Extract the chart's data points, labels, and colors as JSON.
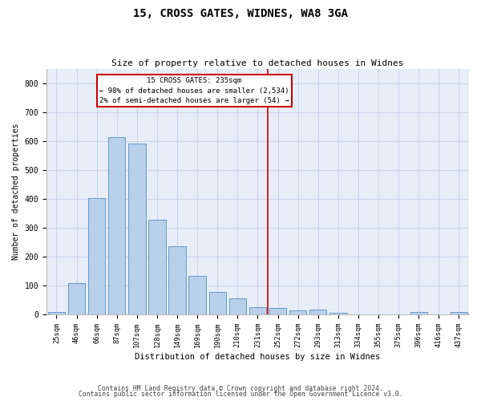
{
  "title1": "15, CROSS GATES, WIDNES, WA8 3GA",
  "title2": "Size of property relative to detached houses in Widnes",
  "xlabel": "Distribution of detached houses by size in Widnes",
  "ylabel": "Number of detached properties",
  "categories": [
    "25sqm",
    "46sqm",
    "66sqm",
    "87sqm",
    "107sqm",
    "128sqm",
    "149sqm",
    "169sqm",
    "190sqm",
    "210sqm",
    "231sqm",
    "252sqm",
    "272sqm",
    "293sqm",
    "313sqm",
    "334sqm",
    "355sqm",
    "375sqm",
    "396sqm",
    "416sqm",
    "437sqm"
  ],
  "values": [
    7,
    107,
    404,
    614,
    592,
    328,
    236,
    133,
    78,
    55,
    25,
    22,
    13,
    15,
    5,
    0,
    0,
    0,
    8,
    0,
    8
  ],
  "bar_color": "#b8d0ea",
  "bar_edge_color": "#6699cc",
  "vline_color": "#cc0000",
  "box_edge_color": "#cc0000",
  "annotation_line1": "15 CROSS GATES: 235sqm",
  "annotation_line2": "← 98% of detached houses are smaller (2,534)",
  "annotation_line3": "2% of semi-detached houses are larger (54) →",
  "ylim": [
    0,
    850
  ],
  "yticks": [
    0,
    100,
    200,
    300,
    400,
    500,
    600,
    700,
    800
  ],
  "grid_color": "#c8d4e8",
  "bg_color": "#e8eef8",
  "footer1": "Contains HM Land Registry data © Crown copyright and database right 2024.",
  "footer2": "Contains public sector information licensed under the Open Government Licence v3.0."
}
